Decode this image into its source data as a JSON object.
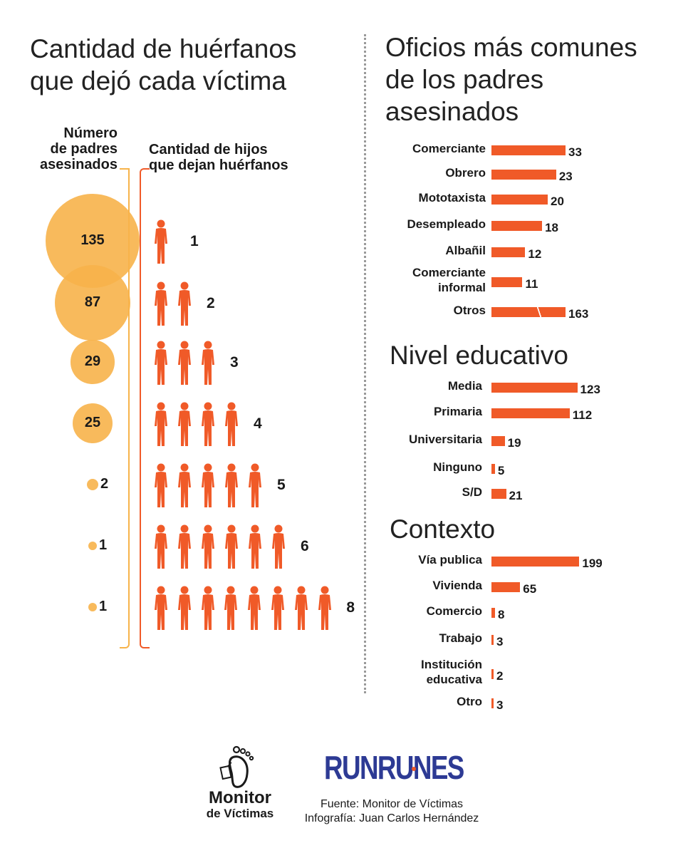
{
  "left_title": "Cantidad de huérfanos que dejó cada víctima",
  "left_title_l1": "Cantidad de huérfanos",
  "left_title_l2": "que dejó cada víctima",
  "parents_label_l1": "Número",
  "parents_label_l2": "de padres",
  "parents_label_l3": "asesinados",
  "children_label_l1": "Cantidad de hijos",
  "children_label_l2": "que dejan huérfanos",
  "right_title_l1": "Oficios más comunes",
  "right_title_l2": "de los padres",
  "right_title_l3": "asesinados",
  "nivel_title": "Nivel educativo",
  "contexto_title": "Contexto",
  "footer_source": "Fuente: Monitor de Víctimas",
  "footer_credit": "Infografía: Juan Carlos Hernández",
  "logo_monitor_l1": "Monitor",
  "logo_monitor_l2": "de Víctimas",
  "logo_runrunes": "RUNRUNES",
  "colors": {
    "bar": "#f05a28",
    "circle": "#f7b34a",
    "bracket_left": "#f7b34a",
    "bracket_right": "#f05a28",
    "runrunes": "#2d3a94"
  },
  "chart_data": [
    {
      "type": "bubble",
      "title": "Cantidad de huérfanos que dejó cada víctima",
      "rows": [
        {
          "parents": "135",
          "children": "1"
        },
        {
          "parents": "87",
          "children": "2"
        },
        {
          "parents": "29",
          "children": "3"
        },
        {
          "parents": "25",
          "children": "4"
        },
        {
          "parents": "2",
          "children": "5"
        },
        {
          "parents": "1",
          "children": "6"
        },
        {
          "parents": "1",
          "children": "8"
        }
      ]
    },
    {
      "type": "bar",
      "title": "Oficios más comunes de los padres asesinados",
      "categories": [
        "Comerciante",
        "Obrero",
        "Mototaxista",
        "Desempleado",
        "Albañil",
        "Comerciante informal",
        "Otros"
      ],
      "values": [
        33,
        23,
        20,
        18,
        12,
        11,
        163
      ],
      "broken_bar": "Otros"
    },
    {
      "type": "bar",
      "title": "Nivel educativo",
      "categories": [
        "Media",
        "Primaria",
        "Universitaria",
        "Ninguno",
        "S/D"
      ],
      "values": [
        123,
        112,
        19,
        5,
        21
      ]
    },
    {
      "type": "bar",
      "title": "Contexto",
      "categories": [
        "Vía publica",
        "Vivienda",
        "Comercio",
        "Trabajo",
        "Institución educativa",
        "Otro"
      ],
      "values": [
        199,
        65,
        8,
        3,
        2,
        3
      ]
    }
  ]
}
